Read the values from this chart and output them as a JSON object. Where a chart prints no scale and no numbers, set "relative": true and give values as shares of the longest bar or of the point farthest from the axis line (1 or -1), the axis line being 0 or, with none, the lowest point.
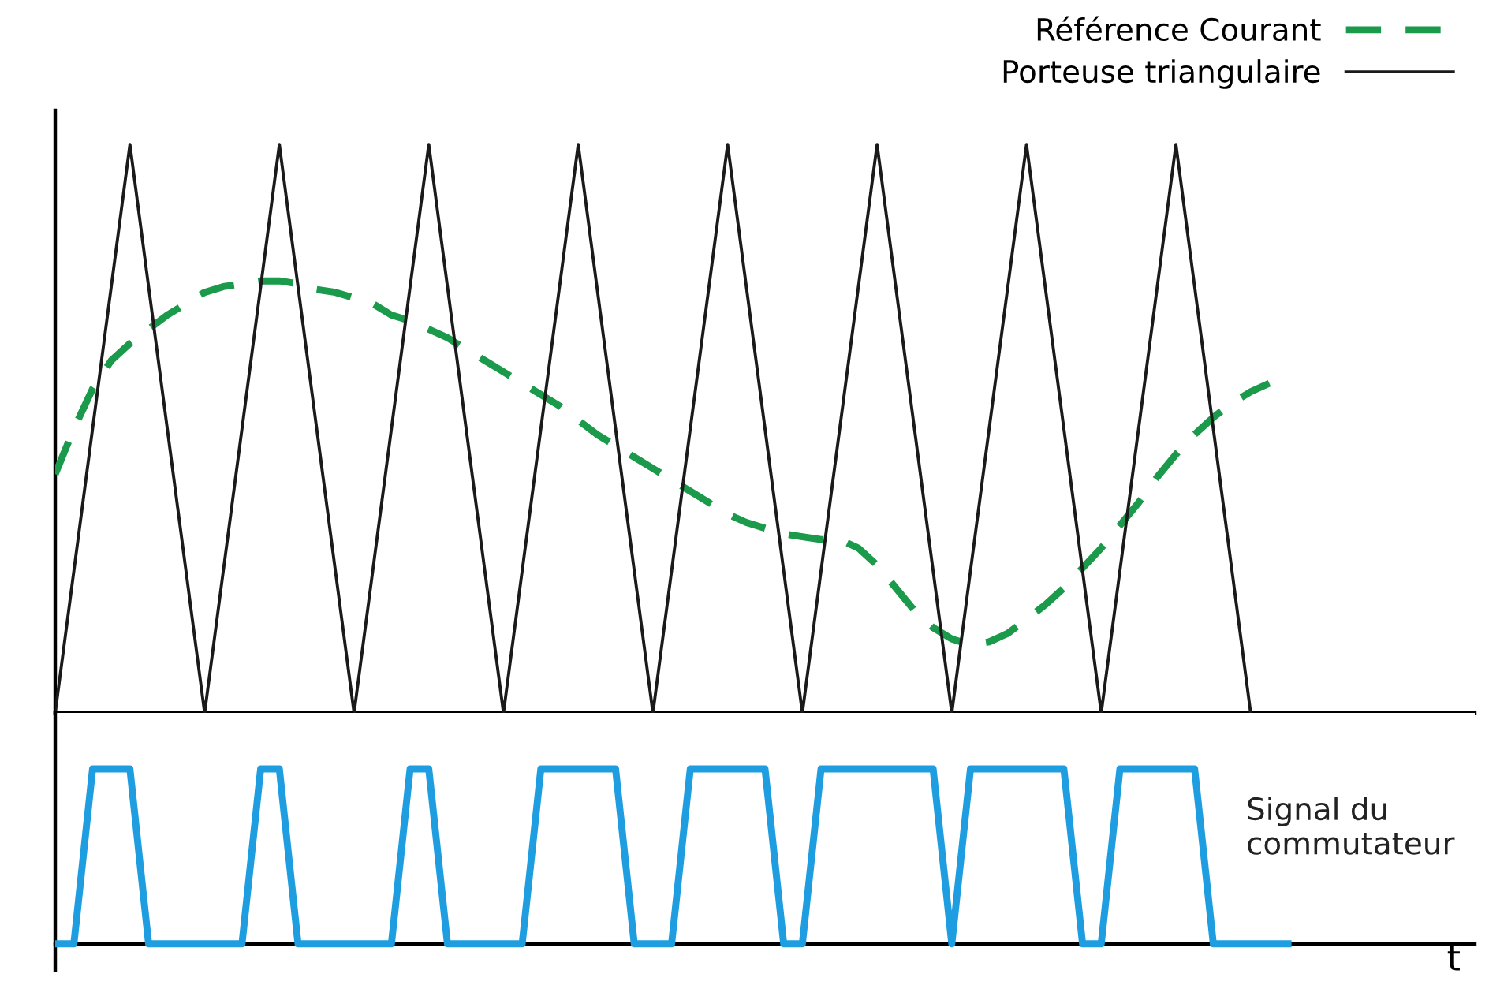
{
  "chart_data": [
    {
      "type": "line",
      "relative": true,
      "legend": "top right",
      "categories": [
        null,
        null,
        null,
        null,
        null,
        null,
        null,
        null,
        null,
        null,
        null,
        null,
        null,
        null,
        null,
        null,
        null,
        null,
        null,
        null,
        null,
        null,
        null,
        null,
        null,
        null,
        null,
        null,
        null,
        null,
        null,
        null,
        null,
        null,
        null,
        null,
        null,
        null,
        null,
        null,
        null,
        null,
        null,
        null,
        null,
        null,
        null,
        null,
        null,
        null,
        null,
        null,
        null,
        null,
        null,
        null,
        null,
        null,
        null,
        null,
        null,
        null,
        null,
        null,
        null,
        null,
        null,
        null,
        null,
        null,
        null,
        null,
        null,
        null,
        null,
        null,
        null
      ],
      "series": [
        {
          "name": "Référence Courant",
          "color": "#1a9a4a",
          "line_style": "dashed",
          "values": [
            0.42,
            0.5,
            0.57,
            0.62,
            0.65,
            0.675,
            0.7,
            0.72,
            0.74,
            0.75,
            0.755,
            0.76,
            0.76,
            0.755,
            0.745,
            0.74,
            0.73,
            0.72,
            0.7,
            0.69,
            0.675,
            0.66,
            0.64,
            0.62,
            0.6,
            0.58,
            0.56,
            0.54,
            0.515,
            0.49,
            0.47,
            0.45,
            0.43,
            0.41,
            0.39,
            0.37,
            0.35,
            0.335,
            0.325,
            0.315,
            0.31,
            0.305,
            0.305,
            0.29,
            0.26,
            0.22,
            0.18,
            0.15,
            0.13,
            0.12,
            0.125,
            0.14,
            0.165,
            0.19,
            0.22,
            0.255,
            0.29,
            0.33,
            0.37,
            0.415,
            0.455,
            0.49,
            0.52,
            0.545,
            0.565,
            0.58,
            null,
            null,
            null,
            null,
            null,
            null,
            null,
            null,
            null,
            null,
            null
          ]
        },
        {
          "name": "Porteuse triangulaire",
          "color": "#1a1a1a",
          "line_style": "solid",
          "values": [
            0,
            0.25,
            0.5,
            0.75,
            1,
            0.75,
            0.5,
            0.25,
            0,
            0.25,
            0.5,
            0.75,
            1,
            0.75,
            0.5,
            0.25,
            0,
            0.25,
            0.5,
            0.75,
            1,
            0.75,
            0.5,
            0.25,
            0,
            0.25,
            0.5,
            0.75,
            1,
            0.75,
            0.5,
            0.25,
            0,
            0.25,
            0.5,
            0.75,
            1,
            0.75,
            0.5,
            0.25,
            0,
            0.25,
            0.5,
            0.75,
            1,
            0.75,
            0.5,
            0.25,
            0,
            0.25,
            0.5,
            0.75,
            1,
            0.75,
            0.5,
            0.25,
            0,
            0.25,
            0.5,
            0.75,
            1,
            0.75,
            0.5,
            0.25,
            0,
            null,
            null,
            null,
            null,
            null,
            null,
            null,
            null,
            null,
            null,
            null,
            null
          ]
        }
      ]
    },
    {
      "type": "line",
      "relative": true,
      "xlabel": "t",
      "categories": [
        null,
        null,
        null,
        null,
        null,
        null,
        null,
        null,
        null,
        null,
        null,
        null,
        null,
        null,
        null,
        null,
        null,
        null,
        null,
        null,
        null,
        null,
        null,
        null,
        null,
        null,
        null,
        null,
        null,
        null,
        null,
        null,
        null,
        null,
        null,
        null,
        null,
        null,
        null,
        null,
        null,
        null,
        null,
        null,
        null,
        null,
        null,
        null,
        null,
        null,
        null,
        null,
        null,
        null,
        null,
        null,
        null,
        null,
        null,
        null,
        null,
        null,
        null,
        null,
        null,
        null,
        null,
        null,
        null,
        null,
        null,
        null,
        null,
        null,
        null,
        null,
        null
      ],
      "series": [
        {
          "name": "Signal du commutateur",
          "color": "#1e9ee0",
          "values": [
            0,
            0,
            1,
            1,
            1,
            0,
            0,
            0,
            0,
            0,
            0,
            1,
            1,
            0,
            0,
            0,
            0,
            0,
            0,
            1,
            1,
            0,
            0,
            0,
            0,
            0,
            1,
            1,
            1,
            1,
            1,
            0,
            0,
            0,
            1,
            1,
            1,
            1,
            1,
            0,
            0,
            1,
            1,
            1,
            1,
            1,
            1,
            1,
            0,
            1,
            1,
            1,
            1,
            1,
            1,
            0,
            0,
            1,
            1,
            1,
            1,
            1,
            0,
            0,
            0,
            0,
            0,
            null,
            null,
            null,
            null,
            null,
            null,
            null,
            null,
            null,
            null
          ]
        }
      ]
    }
  ]
}
